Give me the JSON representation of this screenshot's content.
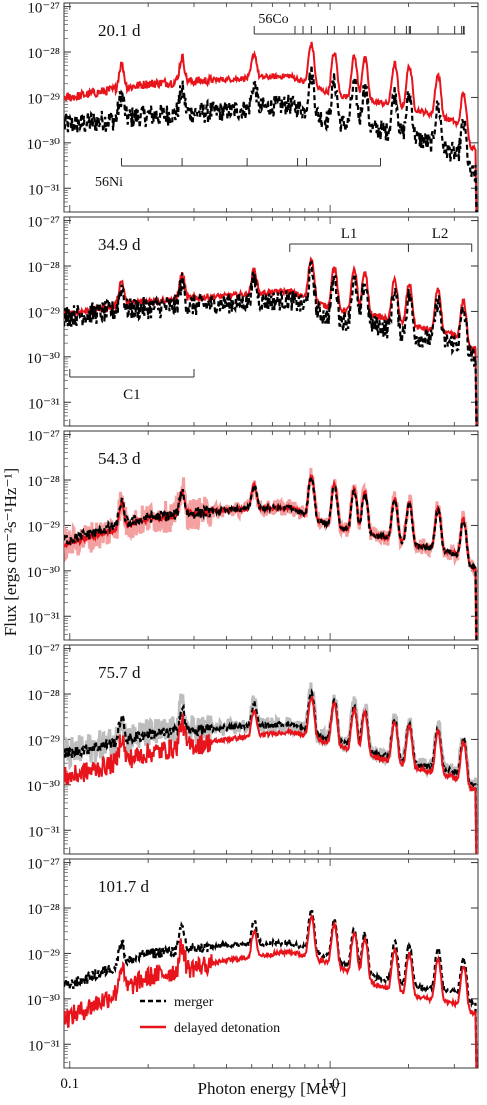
{
  "chart_data": {
    "type": "line",
    "xlabel": "Photon energy [MeV]",
    "ylabel": "Flux [ergs cm⁻²s⁻¹Hz⁻¹]",
    "x_scale": "log",
    "y_scale": "log",
    "xlim": [
      0.095,
      3.7
    ],
    "ylim": [
      3e-32,
      1.2e-27
    ],
    "x_ticks": [
      0.1,
      1.0
    ],
    "x_tick_labels": [
      "0.1",
      "1.0"
    ],
    "y_ticks": [
      1e-31,
      1e-30,
      1e-29,
      1e-28,
      1e-27
    ],
    "y_tick_labels": [
      "10⁻³¹",
      "10⁻³⁰",
      "10⁻²⁹",
      "10⁻²⁸",
      "10⁻²⁷"
    ],
    "legend": {
      "placement": "bottom-left of last panel",
      "entries": [
        {
          "name": "merger",
          "color": "#000000",
          "style": "dashed"
        },
        {
          "name": "delayed detonation",
          "color": "#e8141c",
          "style": "solid"
        }
      ]
    },
    "lines": [
      0.158,
      0.27,
      0.511,
      0.847,
      1.038,
      1.238,
      1.36,
      1.771,
      2.015,
      2.598,
      3.253
    ],
    "panels": [
      {
        "label": "20.1 d",
        "continuum": {
          "x": [
            0.1,
            0.2,
            0.4,
            0.7,
            1.0,
            1.5,
            2.0,
            3.0,
            3.5
          ],
          "merger": [
            2.5e-30,
            4e-30,
            5e-30,
            7e-30,
            3e-30,
            2e-30,
            1.5e-30,
            6e-31,
            2e-31
          ],
          "delayed_detonation": [
            1e-29,
            2e-29,
            2.5e-29,
            3e-29,
            1.2e-29,
            8e-30,
            6e-30,
            3e-30,
            8e-31
          ]
        },
        "annotations": {
          "co56_label": "56Co",
          "ni56_label": "56Ni",
          "co56_tick_energies": [
            0.511,
            0.733,
            0.787,
            0.847,
            0.977,
            1.038,
            1.175,
            1.238,
            1.36,
            1.771,
            1.964,
            2.015,
            2.035,
            2.598,
            3.01,
            3.202,
            3.253,
            3.273
          ],
          "ni56_tick_energies": [
            0.158,
            0.27,
            0.48,
            0.75,
            0.812,
            1.562
          ]
        }
      },
      {
        "label": "34.9 d",
        "continuum": {
          "x": [
            0.1,
            0.2,
            0.4,
            0.7,
            1.0,
            1.5,
            2.0,
            3.0,
            3.5
          ],
          "merger": [
            8e-30,
            1.2e-29,
            1.5e-29,
            1.8e-29,
            7e-30,
            5e-30,
            3e-30,
            2e-30,
            1e-30
          ],
          "delayed_detonation": [
            9e-30,
            1.7e-29,
            2.2e-29,
            2.8e-29,
            1.2e-29,
            8e-30,
            5e-30,
            3e-30,
            1.5e-30
          ]
        },
        "annotations": {
          "bands": [
            {
              "label": "L1",
              "from": 0.7,
              "to": 2.0
            },
            {
              "label": "L2",
              "from": 2.0,
              "to": 3.5
            },
            {
              "label": "C1",
              "from": 0.1,
              "to": 0.3
            }
          ]
        }
      },
      {
        "label": "54.3 d",
        "continuum": {
          "x": [
            0.1,
            0.2,
            0.4,
            0.7,
            1.0,
            1.5,
            2.0,
            3.0,
            3.5
          ],
          "merger": [
            5e-30,
            1.5e-29,
            2.2e-29,
            2.5e-29,
            1e-29,
            6e-30,
            4e-30,
            2.5e-30,
            1.2e-30
          ],
          "delayed_detonation": [
            4e-30,
            1.4e-29,
            2.2e-29,
            2.5e-29,
            1e-29,
            6e-30,
            4e-30,
            2.5e-30,
            1.2e-30
          ]
        }
      },
      {
        "label": "75.7 d",
        "continuum": {
          "x": [
            0.1,
            0.2,
            0.4,
            0.7,
            1.0,
            1.5,
            2.0,
            3.0,
            3.5
          ],
          "merger": [
            5e-30,
            1.3e-29,
            1.8e-29,
            2.2e-29,
            1e-29,
            5e-30,
            3e-30,
            2e-30,
            1e-30
          ],
          "delayed_detonation": [
            1.5e-30,
            5e-30,
            1e-29,
            1.5e-29,
            8e-30,
            4e-30,
            2.5e-30,
            1.5e-30,
            8e-31
          ]
        }
      },
      {
        "label": "101.7 d",
        "continuum": {
          "x": [
            0.1,
            0.2,
            0.4,
            0.7,
            1.0,
            1.5,
            2.0,
            3.0,
            3.5
          ],
          "merger": [
            2e-30,
            1e-29,
            1.5e-29,
            1.8e-29,
            8e-30,
            3e-30,
            2e-30,
            1.5e-30,
            8e-31
          ],
          "delayed_detonation": [
            4e-31,
            3e-30,
            7e-30,
            1.1e-29,
            6e-30,
            2e-30,
            1.2e-30,
            8e-31,
            5e-31
          ]
        }
      }
    ]
  }
}
